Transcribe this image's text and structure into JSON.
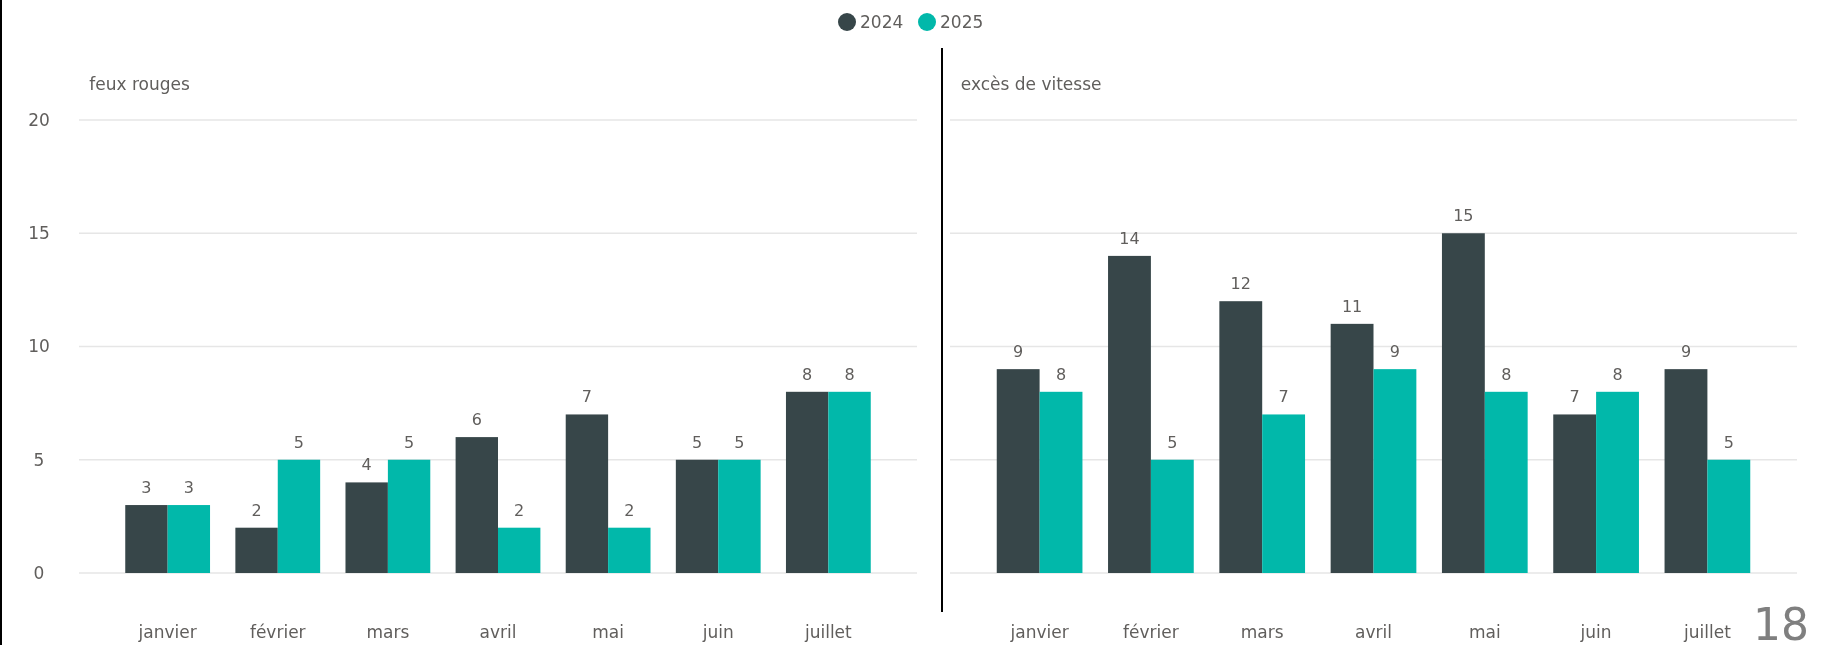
{
  "chart_data": [
    {
      "type": "bar",
      "title": "feux rouges",
      "categories": [
        "janvier",
        "février",
        "mars",
        "avril",
        "mai",
        "juin",
        "juillet"
      ],
      "series": [
        {
          "name": "2024",
          "color": "#374649",
          "values": [
            3,
            2,
            4,
            6,
            7,
            5,
            8
          ]
        },
        {
          "name": "2025",
          "color": "#01b8aa",
          "values": [
            3,
            5,
            5,
            2,
            2,
            5,
            8
          ]
        }
      ],
      "ylim": [
        0,
        20
      ],
      "yticks": [
        0,
        5,
        10,
        15,
        20
      ],
      "grid": "y",
      "legend": "top",
      "data_labels": true
    },
    {
      "type": "bar",
      "title": "excès de vitesse",
      "categories": [
        "janvier",
        "février",
        "mars",
        "avril",
        "mai",
        "juin",
        "juillet"
      ],
      "series": [
        {
          "color": "#374649",
          "values": [
            9,
            14,
            12,
            11,
            15,
            7,
            9
          ]
        },
        {
          "color": "#01b8aa",
          "values": [
            8,
            5,
            7,
            9,
            8,
            8,
            5
          ]
        }
      ],
      "ylim": [
        0,
        20
      ],
      "yticks": [
        0,
        5,
        10,
        15,
        20
      ],
      "grid": "y",
      "tick_labels": "x",
      "data_labels": true,
      "annotations": [
        "18"
      ]
    }
  ]
}
